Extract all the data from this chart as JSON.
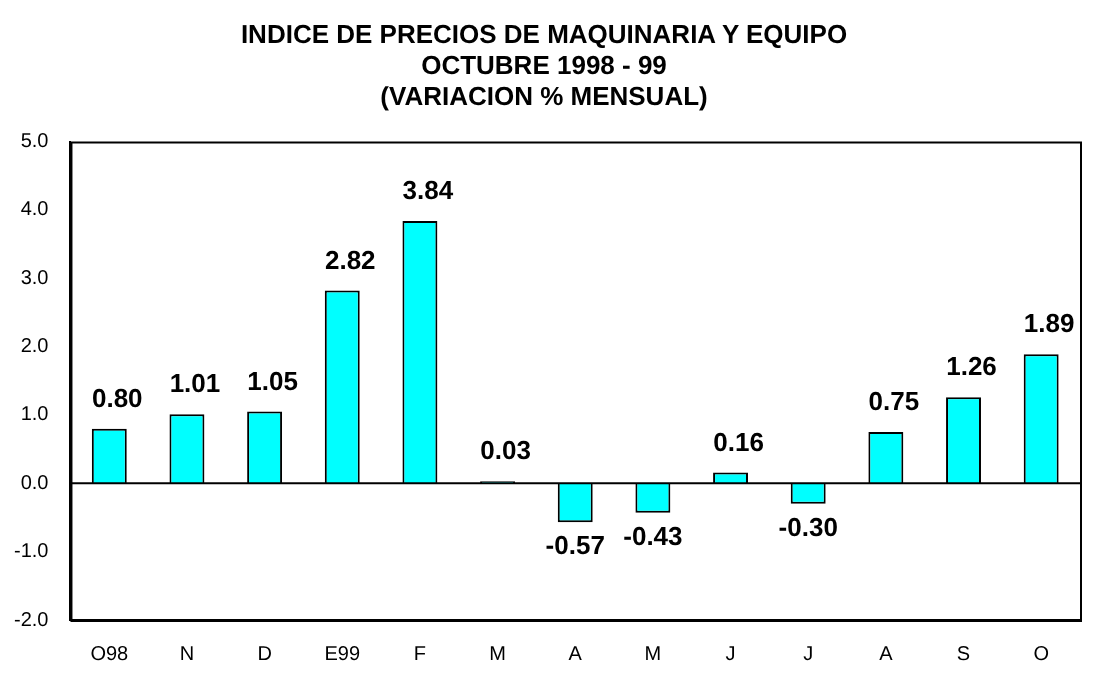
{
  "chart_data": {
    "type": "bar",
    "title": "INDICE DE PRECIOS DE MAQUINARIA Y EQUIPO",
    "subtitle": "OCTUBRE 1998 - 99\n(VARIACION % MENSUAL)",
    "categories": [
      "O98",
      "N",
      "D",
      "E99",
      "F",
      "M",
      "A",
      "M",
      "J",
      "J",
      "A",
      "S",
      "O"
    ],
    "values": [
      0.8,
      1.01,
      1.05,
      2.82,
      3.84,
      0.03,
      -0.57,
      -0.43,
      0.16,
      -0.3,
      0.75,
      1.26,
      1.89
    ],
    "value_labels": [
      "0.80",
      "1.01",
      "1.05",
      "2.82",
      "3.84",
      "0.03",
      "-0.57",
      "-0.43",
      "0.16",
      "-0.30",
      "0.75",
      "1.26",
      "1.89"
    ],
    "color": "#00ffff",
    "ylim": [
      -2,
      5
    ],
    "yticks": [
      {
        "value": -2,
        "label": "-2.0"
      },
      {
        "value": -1,
        "label": "-1.0"
      },
      {
        "value": 0,
        "label": "0.0"
      },
      {
        "value": 1,
        "label": "1.0"
      },
      {
        "value": 2,
        "label": "2.0"
      },
      {
        "value": 3,
        "label": "3.0"
      },
      {
        "value": 4,
        "label": "4.0"
      },
      {
        "value": 5,
        "label": "5.0"
      }
    ],
    "legend": false
  }
}
